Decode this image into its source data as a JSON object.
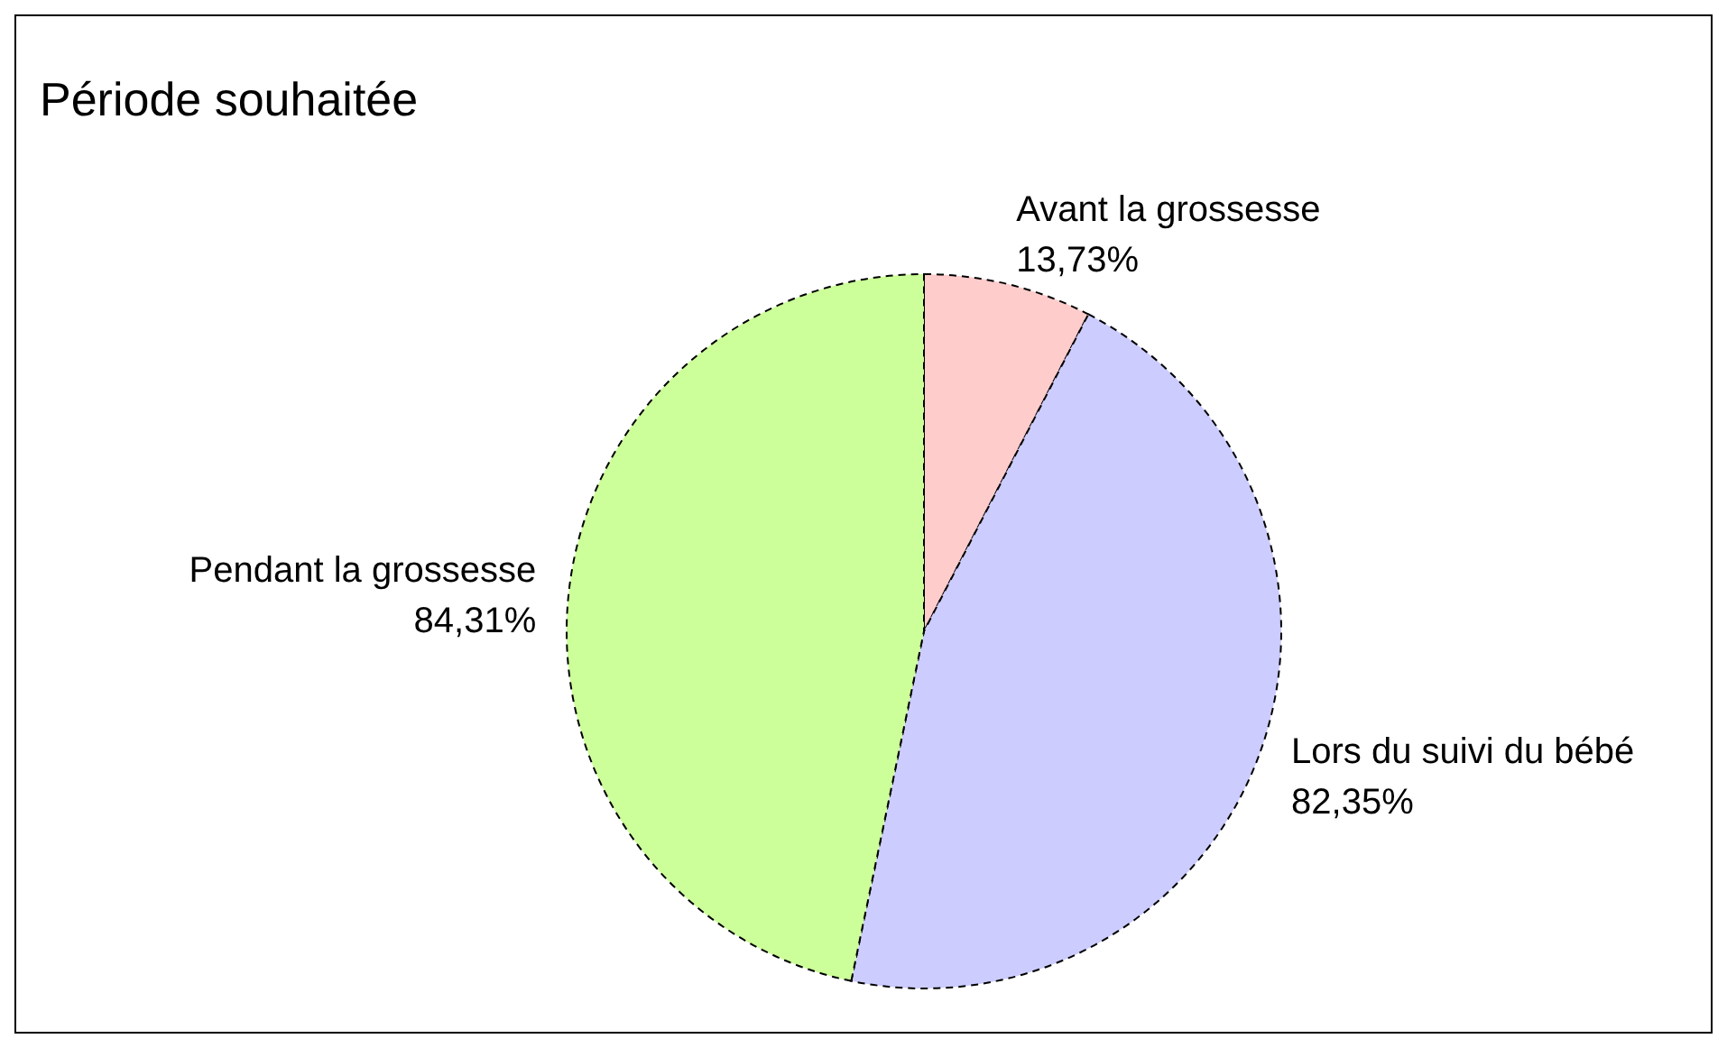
{
  "chart_data": {
    "type": "pie",
    "title": "Période souhaitée",
    "categories": [
      "Avant la grossesse",
      "Lors du suivi du bébé",
      "Pendant la grossesse"
    ],
    "values": [
      13.73,
      82.35,
      84.31
    ],
    "value_labels": [
      "13,73%",
      "82,35%",
      "84,31%"
    ],
    "colors": [
      "#ffcccc",
      "#ccccff",
      "#ccff99"
    ],
    "line_style": "dashed",
    "legend": false
  }
}
